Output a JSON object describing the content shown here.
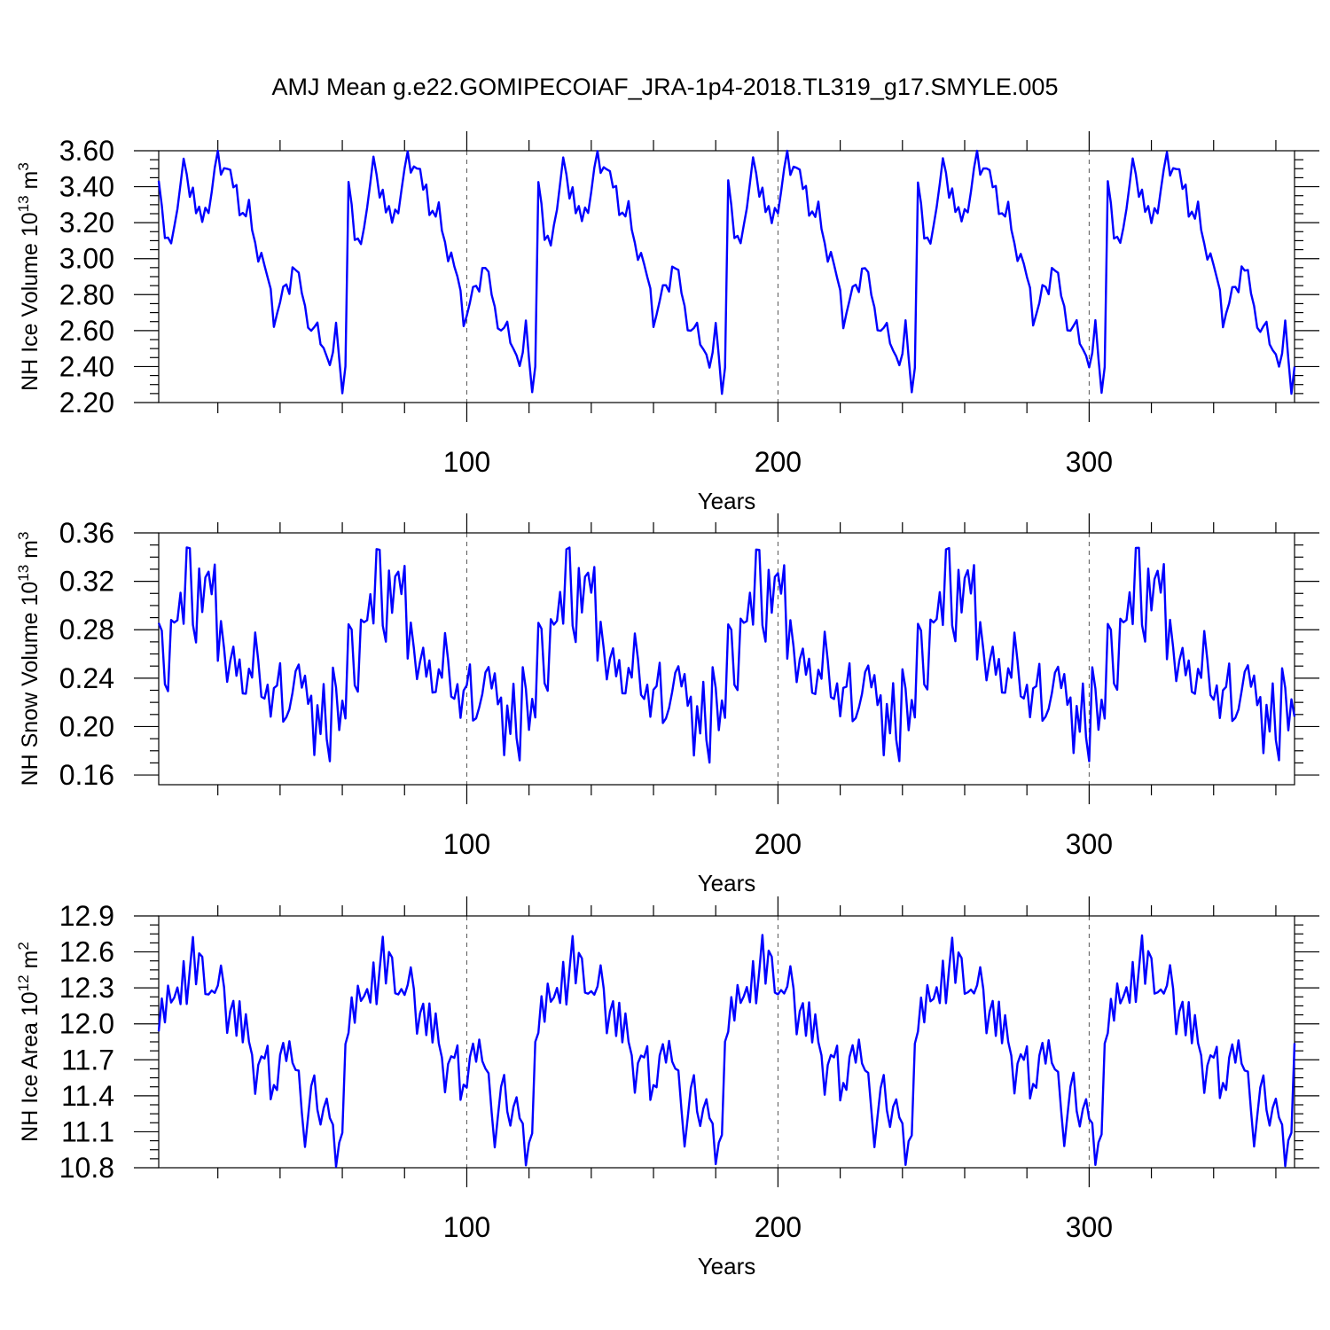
{
  "figure_title": "AMJ Mean g.e22.GOMIPECOIAF_JRA-1p4-2018.TL319_g17.SMYLE.005",
  "colors": {
    "line": "#0000ff",
    "axis": "#000000",
    "grid": "#555555"
  },
  "chart_data": [
    {
      "type": "line",
      "name": "ice-volume",
      "title": "AMJ Mean g.e22.GOMIPECOIAF_JRA-1p4-2018.TL319_g17.SMYLE.005",
      "ylabel_main": "NH Ice Volume 10",
      "ylabel_exp": "13",
      "ylabel_unit": " m",
      "ylabel_unit_exp": "3",
      "xlabel": "Years",
      "xlim": [
        1,
        366
      ],
      "ylim": [
        2.2,
        3.6
      ],
      "x_ticks": [
        100,
        200,
        300
      ],
      "x_tick_labels": [
        "100",
        "200",
        "300"
      ],
      "y_ticks": [
        2.2,
        2.4,
        2.6,
        2.8,
        3.0,
        3.2,
        3.4,
        3.6
      ],
      "y_tick_labels": [
        "2.20",
        "2.40",
        "2.60",
        "2.80",
        "3.00",
        "3.20",
        "3.40",
        "3.60"
      ],
      "cycle_period": 61,
      "cycle_knots": [
        [
          0,
          3.43
        ],
        [
          1,
          3.3
        ],
        [
          2,
          3.11
        ],
        [
          3,
          3.12
        ],
        [
          4,
          3.08
        ],
        [
          6,
          3.28
        ],
        [
          8,
          3.56
        ],
        [
          9,
          3.47
        ],
        [
          10,
          3.34
        ],
        [
          11,
          3.39
        ],
        [
          12,
          3.26
        ],
        [
          13,
          3.29
        ],
        [
          14,
          3.2
        ],
        [
          15,
          3.28
        ],
        [
          16,
          3.25
        ],
        [
          18,
          3.5
        ],
        [
          19,
          3.6
        ],
        [
          20,
          3.47
        ],
        [
          21,
          3.51
        ],
        [
          23,
          3.49
        ],
        [
          24,
          3.39
        ],
        [
          25,
          3.41
        ],
        [
          26,
          3.24
        ],
        [
          27,
          3.26
        ],
        [
          28,
          3.23
        ],
        [
          29,
          3.32
        ],
        [
          30,
          3.16
        ],
        [
          31,
          3.09
        ],
        [
          32,
          2.99
        ],
        [
          33,
          3.03
        ],
        [
          35,
          2.9
        ],
        [
          36,
          2.83
        ],
        [
          37,
          2.62
        ],
        [
          39,
          2.76
        ],
        [
          40,
          2.85
        ],
        [
          41,
          2.85
        ],
        [
          42,
          2.81
        ],
        [
          43,
          2.95
        ],
        [
          45,
          2.93
        ],
        [
          46,
          2.8
        ],
        [
          47,
          2.73
        ],
        [
          48,
          2.61
        ],
        [
          49,
          2.6
        ],
        [
          50,
          2.62
        ],
        [
          51,
          2.65
        ],
        [
          52,
          2.53
        ],
        [
          54,
          2.46
        ],
        [
          55,
          2.4
        ],
        [
          56,
          2.48
        ],
        [
          57,
          2.65
        ],
        [
          59,
          2.25
        ],
        [
          60,
          2.4
        ],
        [
          61,
          3.43
        ]
      ]
    },
    {
      "type": "line",
      "name": "snow-volume",
      "ylabel_main": "NH Snow Volume 10",
      "ylabel_exp": "13",
      "ylabel_unit": " m",
      "ylabel_unit_exp": "3",
      "xlabel": "Years",
      "xlim": [
        1,
        366
      ],
      "ylim": [
        0.152,
        0.36
      ],
      "x_ticks": [
        100,
        200,
        300
      ],
      "x_tick_labels": [
        "100",
        "200",
        "300"
      ],
      "y_ticks": [
        0.16,
        0.2,
        0.24,
        0.28,
        0.32,
        0.36
      ],
      "y_tick_labels": [
        "0.16",
        "0.20",
        "0.24",
        "0.28",
        "0.32",
        "0.36"
      ],
      "cycle_period": 61,
      "cycle_knots": [
        [
          0,
          0.285
        ],
        [
          1,
          0.28
        ],
        [
          2,
          0.235
        ],
        [
          3,
          0.23
        ],
        [
          4,
          0.289
        ],
        [
          5,
          0.285
        ],
        [
          6,
          0.288
        ],
        [
          7,
          0.31
        ],
        [
          8,
          0.285
        ],
        [
          9,
          0.347
        ],
        [
          10,
          0.347
        ],
        [
          11,
          0.284
        ],
        [
          12,
          0.27
        ],
        [
          13,
          0.33
        ],
        [
          14,
          0.295
        ],
        [
          15,
          0.323
        ],
        [
          16,
          0.328
        ],
        [
          17,
          0.31
        ],
        [
          18,
          0.333
        ],
        [
          19,
          0.255
        ],
        [
          20,
          0.287
        ],
        [
          21,
          0.265
        ],
        [
          22,
          0.238
        ],
        [
          23,
          0.255
        ],
        [
          24,
          0.265
        ],
        [
          25,
          0.242
        ],
        [
          26,
          0.255
        ],
        [
          27,
          0.228
        ],
        [
          28,
          0.228
        ],
        [
          29,
          0.248
        ],
        [
          30,
          0.24
        ],
        [
          31,
          0.278
        ],
        [
          32,
          0.255
        ],
        [
          33,
          0.225
        ],
        [
          34,
          0.222
        ],
        [
          35,
          0.235
        ],
        [
          36,
          0.208
        ],
        [
          37,
          0.231
        ],
        [
          38,
          0.233
        ],
        [
          39,
          0.252
        ],
        [
          40,
          0.204
        ],
        [
          41,
          0.208
        ],
        [
          42,
          0.215
        ],
        [
          43,
          0.228
        ],
        [
          44,
          0.245
        ],
        [
          45,
          0.25
        ],
        [
          46,
          0.232
        ],
        [
          47,
          0.243
        ],
        [
          48,
          0.218
        ],
        [
          49,
          0.225
        ],
        [
          50,
          0.177
        ],
        [
          51,
          0.218
        ],
        [
          52,
          0.195
        ],
        [
          53,
          0.236
        ],
        [
          54,
          0.19
        ],
        [
          55,
          0.171
        ],
        [
          56,
          0.248
        ],
        [
          57,
          0.232
        ],
        [
          58,
          0.197
        ],
        [
          59,
          0.222
        ],
        [
          60,
          0.207
        ],
        [
          61,
          0.285
        ]
      ]
    },
    {
      "type": "line",
      "name": "ice-area",
      "ylabel_main": "NH Ice Area 10",
      "ylabel_exp": "12",
      "ylabel_unit": " m",
      "ylabel_unit_exp": "2",
      "xlabel": "Years",
      "xlim": [
        1,
        366
      ],
      "ylim": [
        10.8,
        12.9
      ],
      "x_ticks": [
        100,
        200,
        300
      ],
      "x_tick_labels": [
        "100",
        "200",
        "300"
      ],
      "y_ticks": [
        10.8,
        11.1,
        11.4,
        11.7,
        12.0,
        12.3,
        12.6,
        12.9
      ],
      "y_tick_labels": [
        "10.8",
        "11.1",
        "11.4",
        "11.7",
        "12.0",
        "12.3",
        "12.6",
        "12.9"
      ],
      "cycle_period": 61,
      "cycle_knots": [
        [
          0,
          11.93
        ],
        [
          1,
          12.22
        ],
        [
          2,
          12.02
        ],
        [
          3,
          12.33
        ],
        [
          4,
          12.18
        ],
        [
          5,
          12.22
        ],
        [
          6,
          12.3
        ],
        [
          7,
          12.17
        ],
        [
          8,
          12.52
        ],
        [
          9,
          12.17
        ],
        [
          10,
          12.45
        ],
        [
          11,
          12.73
        ],
        [
          12,
          12.33
        ],
        [
          13,
          12.6
        ],
        [
          14,
          12.55
        ],
        [
          15,
          12.25
        ],
        [
          16,
          12.25
        ],
        [
          17,
          12.28
        ],
        [
          18,
          12.25
        ],
        [
          19,
          12.32
        ],
        [
          20,
          12.48
        ],
        [
          21,
          12.3
        ],
        [
          22,
          11.92
        ],
        [
          23,
          12.1
        ],
        [
          24,
          12.18
        ],
        [
          25,
          11.9
        ],
        [
          26,
          12.18
        ],
        [
          27,
          11.85
        ],
        [
          28,
          12.08
        ],
        [
          29,
          11.84
        ],
        [
          30,
          11.73
        ],
        [
          31,
          11.42
        ],
        [
          32,
          11.66
        ],
        [
          33,
          11.74
        ],
        [
          34,
          11.71
        ],
        [
          35,
          11.82
        ],
        [
          36,
          11.37
        ],
        [
          37,
          11.5
        ],
        [
          38,
          11.46
        ],
        [
          39,
          11.73
        ],
        [
          40,
          11.83
        ],
        [
          41,
          11.68
        ],
        [
          42,
          11.86
        ],
        [
          43,
          11.68
        ],
        [
          44,
          11.62
        ],
        [
          45,
          11.6
        ],
        [
          46,
          11.27
        ],
        [
          47,
          10.98
        ],
        [
          48,
          11.22
        ],
        [
          49,
          11.47
        ],
        [
          50,
          11.58
        ],
        [
          51,
          11.28
        ],
        [
          52,
          11.15
        ],
        [
          53,
          11.3
        ],
        [
          54,
          11.38
        ],
        [
          55,
          11.22
        ],
        [
          56,
          11.17
        ],
        [
          57,
          10.82
        ],
        [
          58,
          11.02
        ],
        [
          59,
          11.08
        ],
        [
          60,
          11.84
        ],
        [
          61,
          11.93
        ]
      ]
    }
  ]
}
